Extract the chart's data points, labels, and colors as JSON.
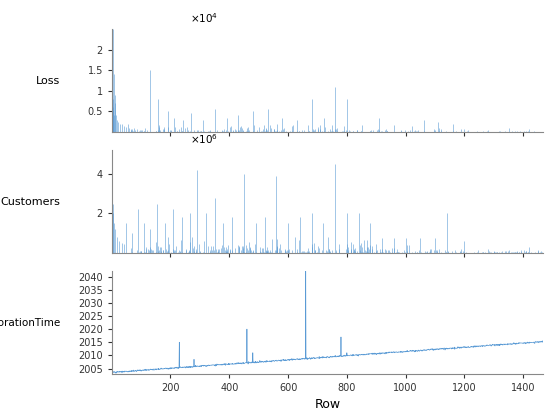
{
  "xlabel": "Row",
  "ylabel1": "Loss",
  "ylabel2": "Customers",
  "ylabel3": "RestorationTime",
  "n_points": 1468,
  "xlim": [
    1,
    1468
  ],
  "line_color": "#4472C4",
  "line_color2": "#5B9BD5",
  "background_color": "#ffffff",
  "loss_yticks": [
    0.5,
    1.0,
    1.5,
    2.0
  ],
  "loss_ylim": [
    0,
    2.5
  ],
  "customers_yticks": [
    2,
    4
  ],
  "customers_ylim": [
    0,
    5.2
  ],
  "restoration_yticks": [
    2005,
    2010,
    2015,
    2020,
    2025,
    2030,
    2035,
    2040
  ],
  "restoration_ylim": [
    2003,
    2042
  ],
  "xticks": [
    200,
    400,
    600,
    800,
    1000,
    1200,
    1400
  ]
}
